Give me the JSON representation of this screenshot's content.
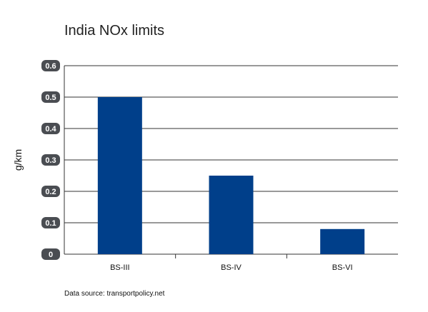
{
  "chart_data": {
    "type": "bar",
    "title": "India NOx limits",
    "xlabel": "",
    "ylabel": "g/km",
    "categories": [
      "BS-III",
      "BS-IV",
      "BS-VI"
    ],
    "values": [
      0.5,
      0.25,
      0.08
    ],
    "ylim": [
      0,
      0.6
    ],
    "yticks": [
      "0",
      "0.1",
      "0.2",
      "0.3",
      "0.4",
      "0.5",
      "0.6"
    ],
    "grid": true,
    "colors": {
      "bar": "#003f8a",
      "tick_badge": "#4a4d52",
      "tick_text": "#ffffff",
      "gridline": "#333333"
    }
  },
  "footer": {
    "source": "Data source: transportpolicy.net"
  }
}
